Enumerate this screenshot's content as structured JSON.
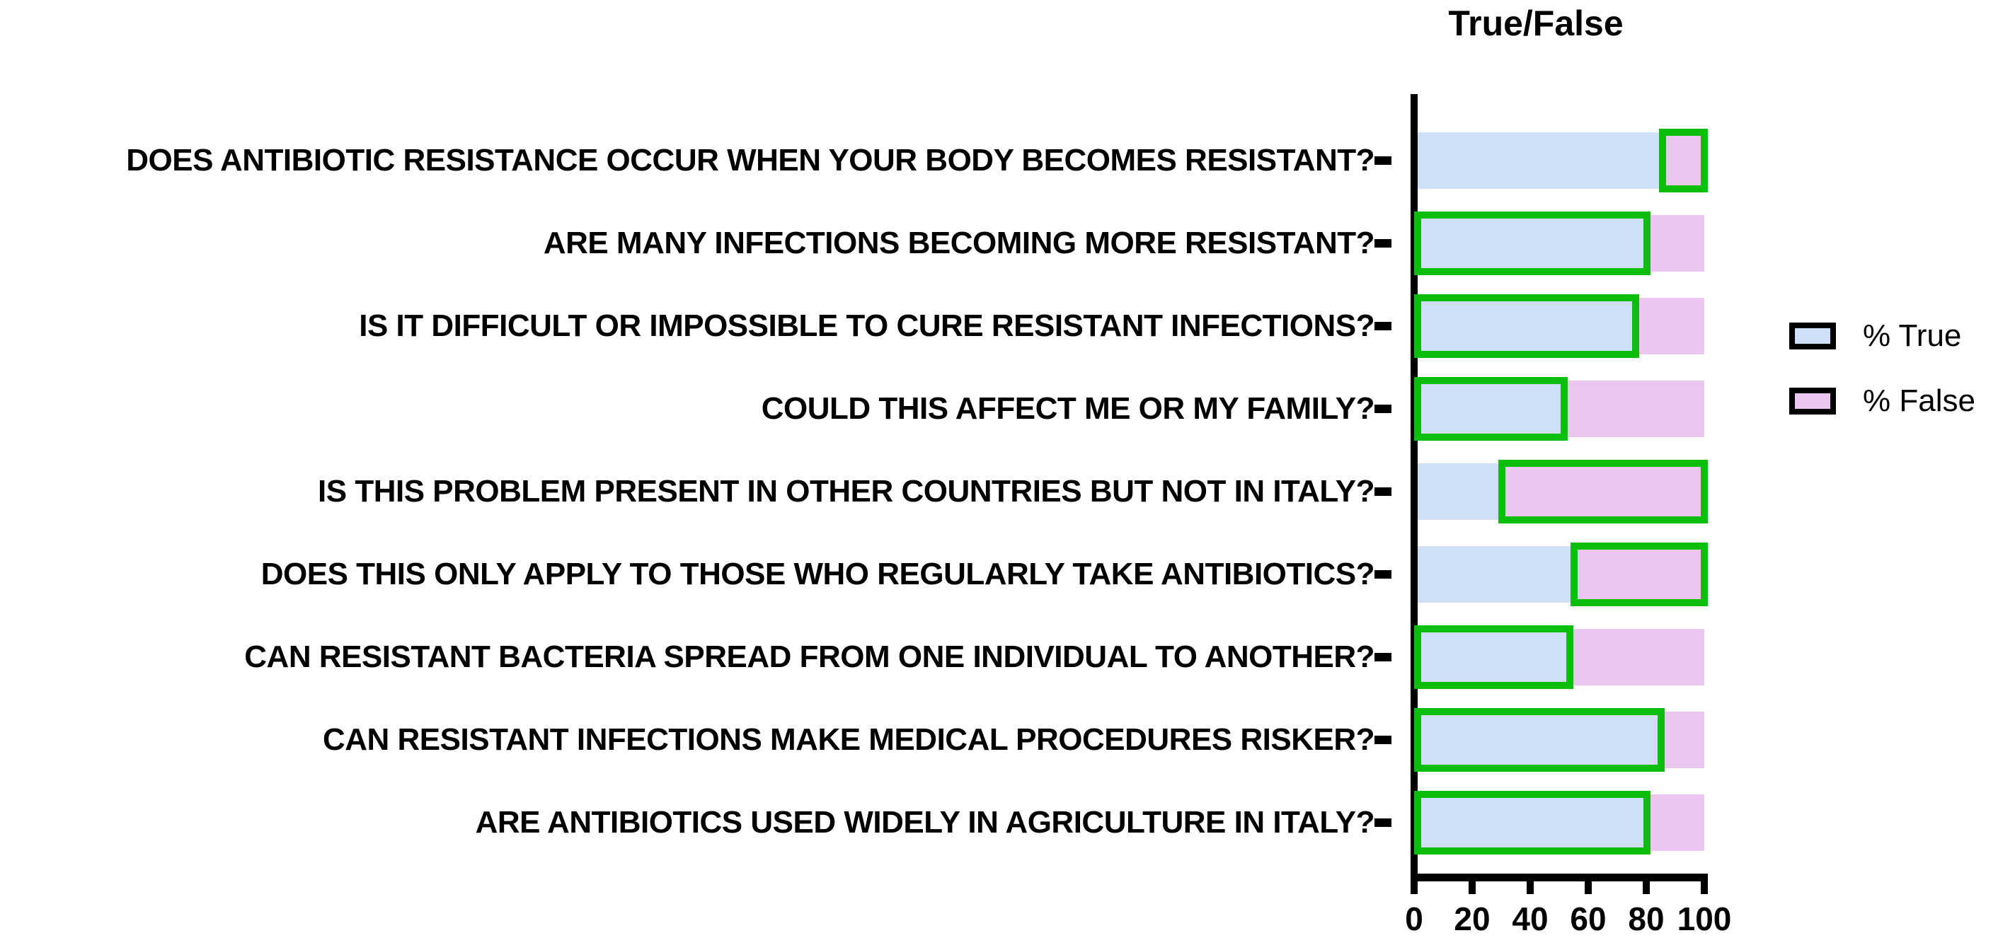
{
  "chart_data": {
    "type": "bar",
    "orientation": "horizontal",
    "stacked": true,
    "title": "True/False",
    "categories": [
      "DOES ANTIBIOTIC RESISTANCE OCCUR WHEN YOUR BODY BECOMES RESISTANT?",
      "ARE MANY INFECTIONS BECOMING MORE RESISTANT?",
      "IS IT DIFFICULT OR IMPOSSIBLE TO CURE RESISTANT INFECTIONS?",
      "COULD THIS AFFECT ME OR MY FAMILY?",
      "IS THIS PROBLEM PRESENT IN OTHER COUNTRIES BUT NOT IN ITALY?",
      "DOES THIS ONLY APPLY TO THOSE WHO REGULARLY TAKE ANTIBIOTICS?",
      "CAN RESISTANT BACTERIA SPREAD FROM ONE INDIVIDUAL TO ANOTHER?",
      "CAN RESISTANT INFECTIONS MAKE MEDICAL PROCEDURES RISKER?",
      "ARE ANTIBIOTICS USED WIDELY IN AGRICULTURE IN ITALY?"
    ],
    "series": [
      {
        "name": "% True",
        "color": "#cfe0f6",
        "values": [
          85,
          80,
          76,
          51,
          29,
          54,
          53,
          85,
          80
        ]
      },
      {
        "name": "% False",
        "color": "#eac6f1",
        "values": [
          15,
          20,
          24,
          49,
          71,
          46,
          47,
          15,
          20
        ]
      }
    ],
    "highlighted_segment_per_row": [
      "% False",
      "% True",
      "% True",
      "% True",
      "% False",
      "% False",
      "% True",
      "% True",
      "% True"
    ],
    "highlight_outline_color": "#0bbe0b",
    "axis_color": "#000000",
    "x_ticks": [
      0,
      20,
      40,
      60,
      80,
      100
    ],
    "xlim": [
      0,
      100
    ],
    "grid": false,
    "legend_position": "right"
  }
}
